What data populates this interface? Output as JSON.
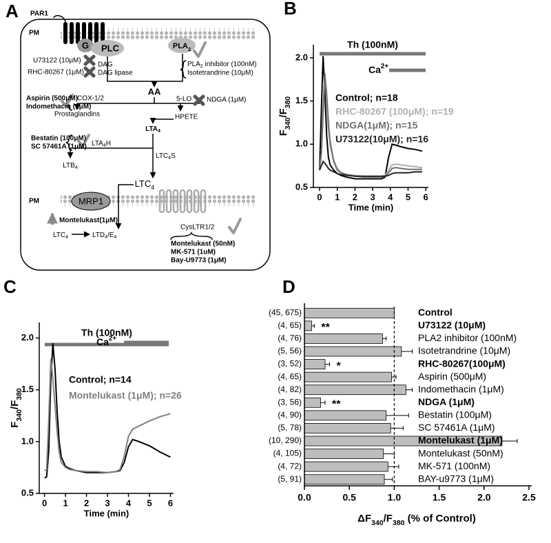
{
  "diagram": {
    "label": "A",
    "labels": [
      "PAR1",
      "PM",
      "G",
      "PLC",
      [
        "PLA",
        "2"
      ],
      "U73122 (10μM)",
      "DAG",
      "RHC-80267 (1μM)",
      "DAG lipase",
      [
        "PLA",
        "2",
        " inhibitor (100nM)"
      ],
      "Isotetrandrine (10μM)",
      "AA",
      "Aspirin (500μM)",
      "Indomethacin (1μM)",
      "COX-1/2",
      "5-LO",
      "NDGA (1μM)",
      "Prostaglandins",
      "HPETE",
      [
        "LTA",
        "4"
      ],
      "Bestatin (100μM)",
      "SC 57461A (1μM)",
      [
        "LTA",
        "4",
        "H"
      ],
      [
        "LTC",
        "4",
        "S"
      ],
      [
        "LTB",
        "4"
      ],
      [
        "LTC",
        "4"
      ],
      "PM",
      "MRP1",
      "Montelukast(1μM)",
      [
        "LTC",
        "4"
      ],
      [
        "LTD",
        "4",
        "/E",
        "4"
      ],
      "CysLTR1/2",
      "Montelukast (50nM)",
      "MK-571 (1uM)",
      "Bay-U9773 (1μM)"
    ]
  },
  "chart_data": [
    {
      "type": "line",
      "label": "B",
      "treatment_label": "Th (100nM)",
      "ion_label": [
        "Ca",
        "2+"
      ],
      "xlabel": "Time (min)",
      "ylabel": [
        "F",
        "340",
        "/F",
        "380"
      ],
      "xlim": [
        -0.35,
        6.15
      ],
      "xticks": [
        0,
        1,
        2,
        3,
        4,
        5,
        6
      ],
      "ylim": [
        0.5,
        2.15
      ],
      "yticks": [
        0.5,
        {
          "value": 1,
          "label": "1.0"
        },
        1.5,
        {
          "value": 2,
          "label": "2.0"
        }
      ],
      "x": [
        0,
        0.1,
        0.2,
        0.3,
        0.4,
        0.5,
        0.6,
        0.8,
        1.0,
        1.2,
        1.5,
        2,
        2.5,
        3,
        3.5,
        3.7,
        3.9,
        4.1,
        4.3,
        4.6,
        5,
        5.4,
        5.8
      ],
      "series": [
        {
          "name": "Control; n=18",
          "color": "#000000",
          "values": [
            0.7,
            1.4,
            2.02,
            1.6,
            1.1,
            0.85,
            0.76,
            0.7,
            0.66,
            0.64,
            0.62,
            0.6,
            0.6,
            0.6,
            0.6,
            0.62,
            0.85,
            1.0,
            0.99,
            0.97,
            0.95,
            0.94,
            0.92
          ]
        },
        {
          "name": "RHC-80267 (100μM); n=19",
          "color": "#b0b0b0",
          "values": [
            0.7,
            0.9,
            1.3,
            1.8,
            1.6,
            1.3,
            1.05,
            0.82,
            0.72,
            0.68,
            0.65,
            0.64,
            0.63,
            0.63,
            0.63,
            0.64,
            0.7,
            0.76,
            0.77,
            0.76,
            0.75,
            0.74,
            0.73
          ]
        },
        {
          "name": "NDGA(1μM); n=15",
          "color": "#707070",
          "values": [
            0.7,
            0.9,
            1.4,
            1.82,
            1.55,
            1.2,
            1.0,
            0.8,
            0.7,
            0.67,
            0.65,
            0.63,
            0.62,
            0.62,
            0.62,
            0.63,
            0.67,
            0.72,
            0.73,
            0.72,
            0.71,
            0.71,
            0.71
          ]
        },
        {
          "name": "U73122(10μM); n=16",
          "color": "#222222",
          "values": [
            0.7,
            0.75,
            0.8,
            0.78,
            0.75,
            0.72,
            0.7,
            0.68,
            0.66,
            0.65,
            0.64,
            0.63,
            0.63,
            0.63,
            0.63,
            0.63,
            0.64,
            0.66,
            0.67,
            0.67,
            0.67,
            0.68,
            0.68
          ]
        }
      ]
    },
    {
      "type": "line",
      "label": "C",
      "treatment_label": "Th (100nM)",
      "ion_label": [
        "Ca",
        "2+"
      ],
      "xlabel": "Time (min)",
      "ylabel": [
        "F",
        "340",
        "/F",
        "380"
      ],
      "xlim": [
        -0.25,
        6.15
      ],
      "xticks": [
        0,
        1,
        2,
        3,
        4,
        5,
        6
      ],
      "ylim": [
        0.5,
        2.15
      ],
      "yticks": [
        0.5,
        {
          "value": 1,
          "label": "1.0"
        },
        1.5,
        {
          "value": 2,
          "label": "2.0"
        }
      ],
      "x": [
        0,
        0.1,
        0.2,
        0.3,
        0.4,
        0.5,
        0.6,
        0.7,
        0.8,
        1.0,
        1.2,
        1.5,
        2,
        2.5,
        3,
        3.4,
        3.6,
        3.8,
        4.0,
        4.2,
        4.5,
        5,
        5.5,
        6
      ],
      "series": [
        {
          "name": "Control; n=14",
          "color": "#000000",
          "values": [
            0.65,
            0.66,
            0.9,
            1.6,
            1.95,
            1.7,
            1.3,
            1.0,
            0.85,
            0.76,
            0.74,
            0.72,
            0.7,
            0.7,
            0.7,
            0.71,
            0.72,
            0.8,
            0.95,
            1.02,
            1.0,
            0.96,
            0.9,
            0.85
          ]
        },
        {
          "name": "Montelukast (1μM); n=26",
          "color": "#808080",
          "values": [
            0.72,
            0.73,
            1.2,
            1.8,
            1.6,
            1.35,
            1.1,
            0.9,
            0.8,
            0.75,
            0.73,
            0.72,
            0.71,
            0.71,
            0.7,
            0.71,
            0.73,
            0.86,
            1.05,
            1.12,
            1.15,
            1.2,
            1.24,
            1.27
          ]
        }
      ]
    },
    {
      "type": "hbar",
      "label": "D",
      "color": "#bdbdbd",
      "xlabel": [
        "ΔF",
        "340",
        "/F",
        "380",
        " (% of Control)"
      ],
      "xlim": [
        0,
        2.5
      ],
      "xticks": [
        {
          "value": 0,
          "label": "0.0"
        },
        0.5,
        {
          "value": 1,
          "label": "1.0"
        },
        1.5,
        {
          "value": 2,
          "label": "2.0"
        },
        2.5
      ],
      "reference_line": 1,
      "categories": [
        "Control",
        "U73122 (10μM)",
        "PLA2 inhibitor (100nM)",
        "Isotetrandrine (10μM)",
        "RHC-80267(100μM)",
        "Aspirin (500μM)",
        "Indomethacin (1μM)",
        "NDGA (1μM)",
        "Bestatin (100μM)",
        "SC 57461A (1μM)",
        "Montelukast (1μM)",
        "Montelukast (50nM)",
        "MK-571 (100nM)",
        "BAY-u9773 (1μM)"
      ],
      "bold_categories": [
        0,
        1,
        4,
        7,
        10
      ],
      "n_labels": [
        "(45, 675)",
        "(4, 65)",
        "(4, 76)",
        "(5, 56)",
        "(3, 52)",
        "(4, 65)",
        "(4, 82)",
        "(3, 56)",
        "(4, 90)",
        "(5, 78)",
        "(10, 290)",
        "(4, 105)",
        "(4, 72)",
        "(5, 91)"
      ],
      "sig_labels": [
        null,
        "**",
        null,
        null,
        "*",
        null,
        null,
        "**",
        null,
        null,
        null,
        null,
        null,
        null
      ],
      "values": [
        1.0,
        0.08,
        0.87,
        1.08,
        0.23,
        0.97,
        1.13,
        0.18,
        0.91,
        0.96,
        2.2,
        0.88,
        0.93,
        0.89
      ],
      "errors": [
        0,
        0.03,
        0.04,
        0.12,
        0.05,
        0.05,
        0.07,
        0.05,
        0.25,
        0.14,
        0.17,
        0.12,
        0.12,
        0.09
      ]
    }
  ]
}
